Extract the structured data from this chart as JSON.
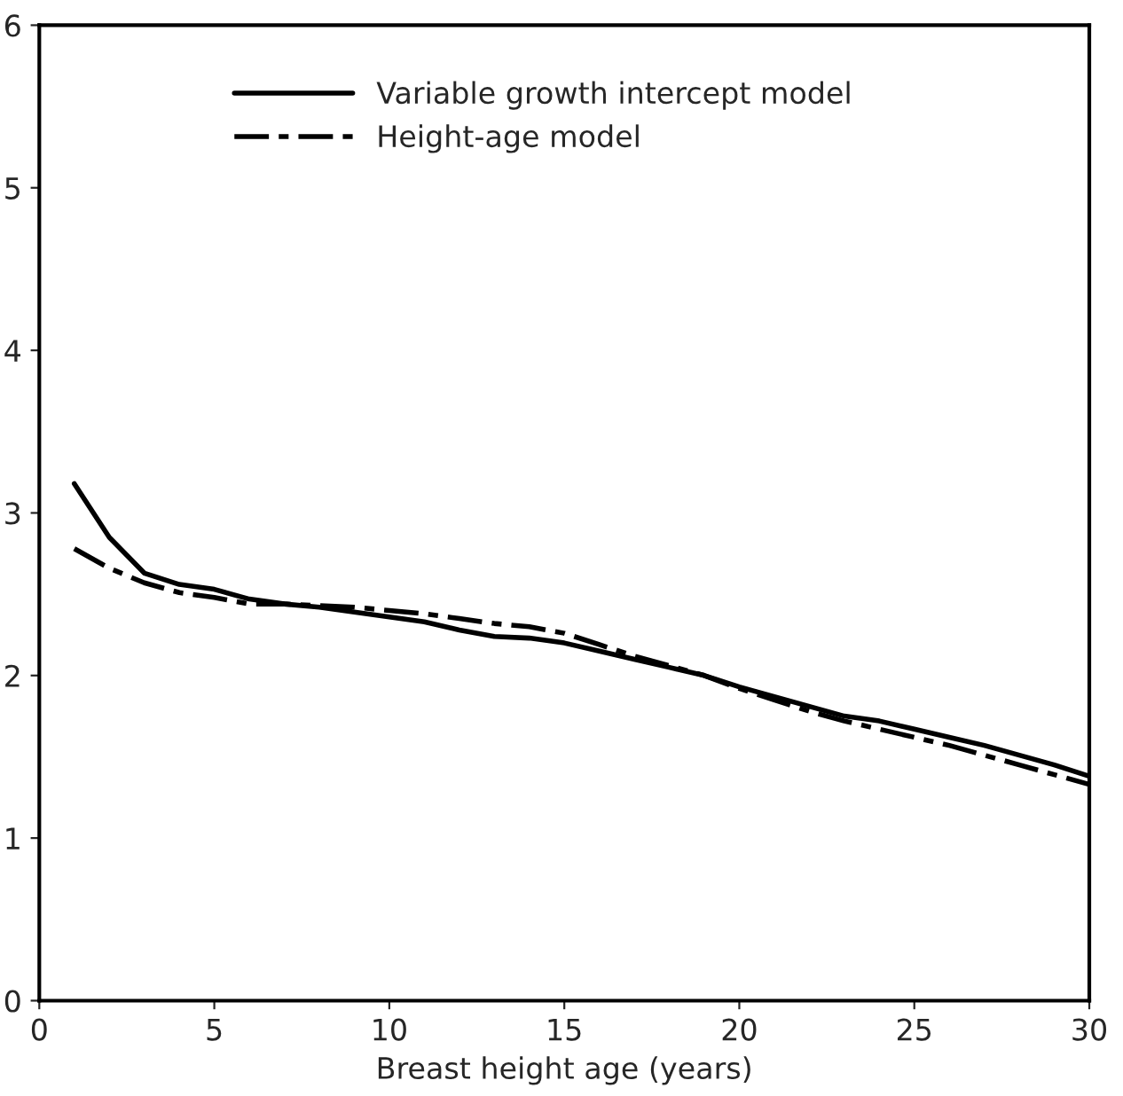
{
  "chart_data": {
    "type": "line",
    "xlabel": "Breast height age (years)",
    "x": [
      1,
      2,
      3,
      4,
      5,
      6,
      7,
      8,
      9,
      10,
      11,
      12,
      13,
      14,
      15,
      16,
      17,
      18,
      19,
      20,
      21,
      22,
      23,
      24,
      25,
      26,
      27,
      28,
      29,
      30
    ],
    "series": [
      {
        "name": "Variable growth intercept model",
        "color": "#000000",
        "line_style": "solid",
        "values": [
          3.18,
          2.85,
          2.63,
          2.56,
          2.53,
          2.47,
          2.44,
          2.42,
          2.39,
          2.36,
          2.33,
          2.28,
          2.24,
          2.23,
          2.2,
          2.15,
          2.1,
          2.05,
          2.0,
          1.93,
          1.87,
          1.81,
          1.75,
          1.72,
          1.67,
          1.62,
          1.57,
          1.51,
          1.45,
          1.38
        ]
      },
      {
        "name": "Height-age model",
        "color": "#000000",
        "line_style": "dashdot",
        "values": [
          2.78,
          2.66,
          2.57,
          2.51,
          2.48,
          2.44,
          2.44,
          2.43,
          2.42,
          2.4,
          2.38,
          2.35,
          2.32,
          2.3,
          2.26,
          2.19,
          2.12,
          2.06,
          2.0,
          1.92,
          1.85,
          1.78,
          1.72,
          1.67,
          1.62,
          1.57,
          1.51,
          1.45,
          1.39,
          1.33
        ]
      }
    ],
    "xlim": [
      0,
      30
    ],
    "xticks": [
      0,
      5,
      10,
      15,
      20,
      25,
      30
    ],
    "ylim": [
      0,
      6
    ],
    "yticks": [
      0,
      1,
      2,
      3,
      4,
      5,
      6
    ],
    "grid": false,
    "legend": "top"
  }
}
